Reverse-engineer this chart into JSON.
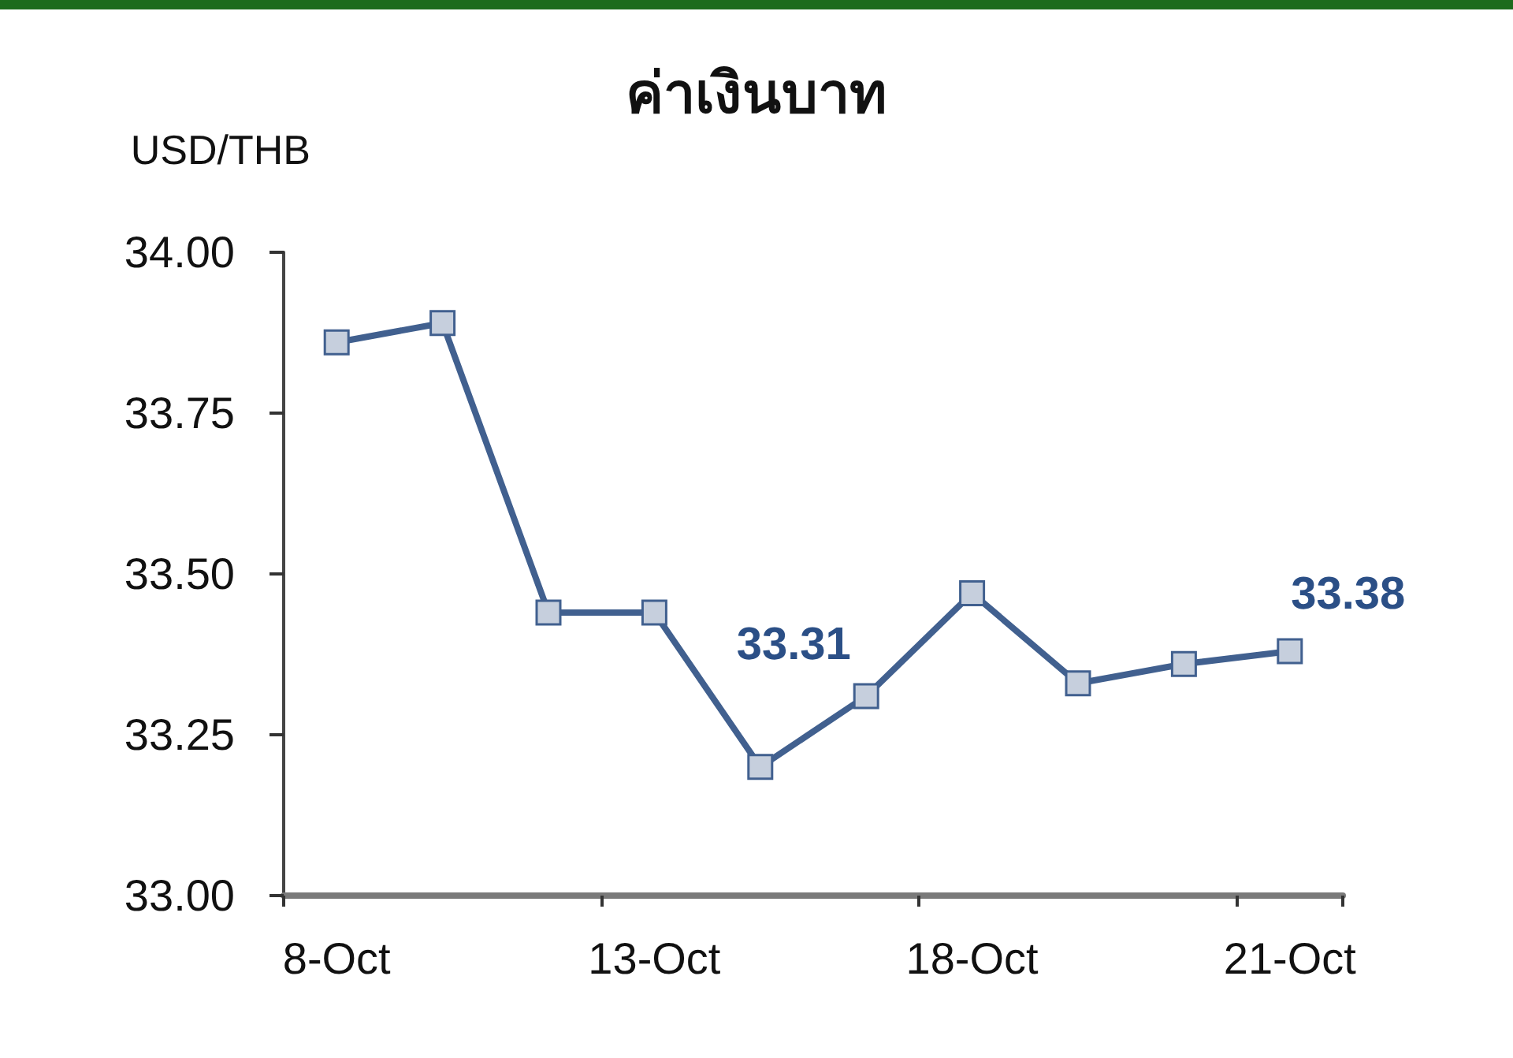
{
  "chart_data": {
    "type": "line",
    "title": "ค่าเงินบาท",
    "ylabel": "USD/THB",
    "categories": [
      "8-Oct",
      null,
      null,
      "13-Oct",
      null,
      null,
      "18-Oct",
      null,
      null,
      "21-Oct"
    ],
    "values": [
      33.86,
      33.89,
      33.44,
      33.44,
      33.2,
      33.31,
      33.47,
      33.33,
      33.36,
      33.38
    ],
    "value_labels": [
      null,
      null,
      null,
      null,
      null,
      "33.31",
      null,
      null,
      null,
      "33.38"
    ],
    "color": "#41608f",
    "marker": "square",
    "line_style": "solid",
    "grid": false,
    "ylim": [
      33,
      34
    ],
    "yticks": [
      {
        "value": 33,
        "label": "33.00"
      },
      {
        "value": 33.25,
        "label": "33.25"
      },
      {
        "value": 33.5,
        "label": "33.50"
      },
      {
        "value": 33.75,
        "label": "33.75"
      },
      {
        "value": 34,
        "label": "34.00"
      }
    ]
  }
}
